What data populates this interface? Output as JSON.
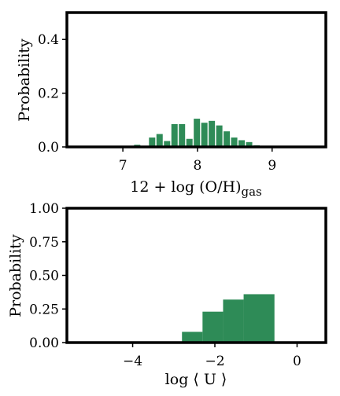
{
  "chart_data": [
    {
      "type": "bar",
      "xlabel": "12 + log (O/H)",
      "xlabel_sub": "gas",
      "ylabel": "Probability",
      "xlim": [
        6.25,
        9.72
      ],
      "ylim": [
        0,
        0.5
      ],
      "xticks": [
        7,
        8,
        9
      ],
      "xtick_labels": [
        "7",
        "8",
        "9"
      ],
      "yticks": [
        0.0,
        0.2,
        0.4
      ],
      "ytick_labels": [
        "0.0",
        "0.2",
        "0.4"
      ],
      "bar_color": "#2e8b57",
      "bins": [
        {
          "x0": 7.05,
          "x1": 7.15,
          "value": 0.002
        },
        {
          "x0": 7.15,
          "x1": 7.25,
          "value": 0.008
        },
        {
          "x0": 7.35,
          "x1": 7.45,
          "value": 0.035
        },
        {
          "x0": 7.45,
          "x1": 7.55,
          "value": 0.048
        },
        {
          "x0": 7.55,
          "x1": 7.65,
          "value": 0.022
        },
        {
          "x0": 7.65,
          "x1": 7.75,
          "value": 0.085
        },
        {
          "x0": 7.75,
          "x1": 7.85,
          "value": 0.085
        },
        {
          "x0": 7.85,
          "x1": 7.95,
          "value": 0.03
        },
        {
          "x0": 7.95,
          "x1": 8.05,
          "value": 0.105
        },
        {
          "x0": 8.05,
          "x1": 8.15,
          "value": 0.09
        },
        {
          "x0": 8.15,
          "x1": 8.25,
          "value": 0.097
        },
        {
          "x0": 8.25,
          "x1": 8.35,
          "value": 0.08
        },
        {
          "x0": 8.35,
          "x1": 8.45,
          "value": 0.058
        },
        {
          "x0": 8.45,
          "x1": 8.55,
          "value": 0.035
        },
        {
          "x0": 8.55,
          "x1": 8.65,
          "value": 0.025
        },
        {
          "x0": 8.65,
          "x1": 8.75,
          "value": 0.018
        },
        {
          "x0": 8.75,
          "x1": 8.85,
          "value": 0.006
        },
        {
          "x0": 8.85,
          "x1": 8.95,
          "value": 0.003
        }
      ]
    },
    {
      "type": "bar",
      "xlabel": "log ⟨ U ⟩",
      "ylabel": "Probability",
      "xlim": [
        -5.6,
        0.7
      ],
      "ylim": [
        0,
        1.0
      ],
      "xticks": [
        -4,
        -2,
        0
      ],
      "xtick_labels": [
        "−4",
        "−2",
        "0"
      ],
      "yticks": [
        0.0,
        0.25,
        0.5,
        0.75,
        1.0
      ],
      "ytick_labels": [
        "0.00",
        "0.25",
        "0.50",
        "0.75",
        "1.00"
      ],
      "bar_color": "#2e8b57",
      "bins": [
        {
          "x0": -2.8,
          "x1": -2.3,
          "value": 0.08
        },
        {
          "x0": -2.3,
          "x1": -1.8,
          "value": 0.23
        },
        {
          "x0": -1.8,
          "x1": -1.3,
          "value": 0.32
        },
        {
          "x0": -1.3,
          "x1": -0.55,
          "value": 0.36
        }
      ]
    }
  ]
}
